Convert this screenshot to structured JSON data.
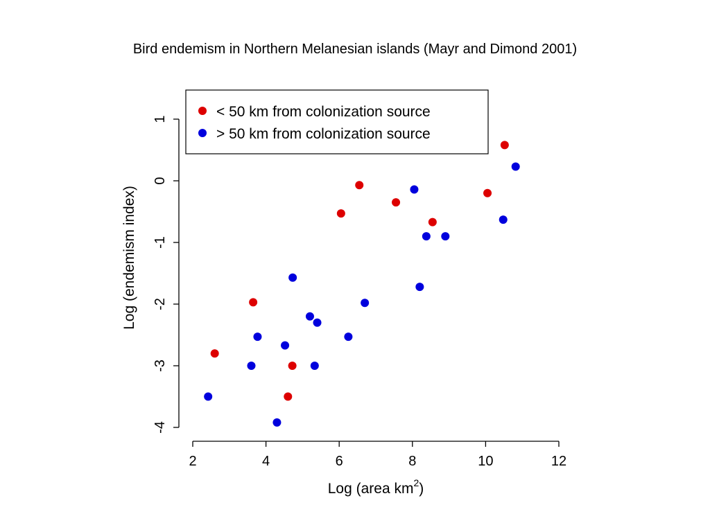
{
  "page": {
    "title": "Bird endemism in Northern Melanesian islands (Mayr and Dimond 2001)"
  },
  "chart_data": {
    "type": "scatter",
    "xlabel": "Log (area km",
    "xlabel_superscript": "2",
    "xlabel_close": ")",
    "ylabel": "Log (endemism index)",
    "xlim": [
      2,
      12
    ],
    "ylim": [
      -4,
      1
    ],
    "xticks": [
      2,
      4,
      6,
      8,
      10,
      12
    ],
    "yticks": [
      -4,
      -3,
      -2,
      -1,
      0,
      1
    ],
    "legend_position": "top-left",
    "series": [
      {
        "name": "< 50 km from colonization source",
        "color": "#dd0000",
        "points": [
          {
            "x": 2.6,
            "y": -2.8
          },
          {
            "x": 3.65,
            "y": -1.97
          },
          {
            "x": 4.6,
            "y": -3.5
          },
          {
            "x": 4.72,
            "y": -3.0
          },
          {
            "x": 6.05,
            "y": -0.53
          },
          {
            "x": 6.55,
            "y": -0.07
          },
          {
            "x": 7.55,
            "y": -0.35
          },
          {
            "x": 8.55,
            "y": -0.67
          },
          {
            "x": 10.05,
            "y": -0.2
          },
          {
            "x": 10.52,
            "y": 0.58
          }
        ]
      },
      {
        "name": "> 50 km from colonization source",
        "color": "#0000dd",
        "points": [
          {
            "x": 2.42,
            "y": -3.5
          },
          {
            "x": 3.6,
            "y": -3.0
          },
          {
            "x": 3.77,
            "y": -2.53
          },
          {
            "x": 4.3,
            "y": -3.92
          },
          {
            "x": 4.52,
            "y": -2.67
          },
          {
            "x": 4.73,
            "y": -1.57
          },
          {
            "x": 5.2,
            "y": -2.2
          },
          {
            "x": 5.33,
            "y": -3.0
          },
          {
            "x": 5.4,
            "y": -2.3
          },
          {
            "x": 6.25,
            "y": -2.53
          },
          {
            "x": 6.7,
            "y": -1.98
          },
          {
            "x": 8.05,
            "y": -0.14
          },
          {
            "x": 8.2,
            "y": -1.72
          },
          {
            "x": 8.38,
            "y": -0.9
          },
          {
            "x": 8.9,
            "y": -0.9
          },
          {
            "x": 10.48,
            "y": -0.63
          },
          {
            "x": 10.82,
            "y": 0.23
          }
        ]
      }
    ]
  }
}
